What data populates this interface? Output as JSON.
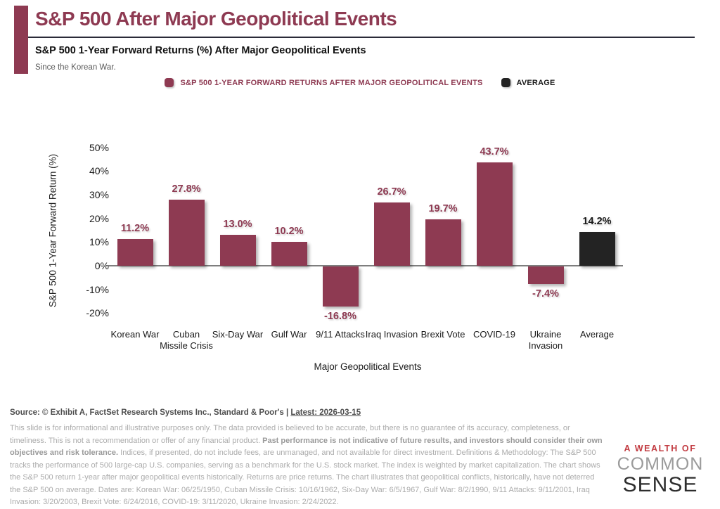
{
  "header": {
    "title": "S&P 500 After Major Geopolitical Events",
    "subtitle": "S&P 500 1-Year Forward Returns (%) After Major Geopolitical Events",
    "tagline": "Since the Korean War."
  },
  "legend": [
    {
      "label": "S&P 500 1-YEAR FORWARD RETURNS AFTER MAJOR GEOPOLITICAL EVENTS",
      "color": "#8E3A52",
      "text_color": "#8E3A52"
    },
    {
      "label": "AVERAGE",
      "color": "#232323",
      "text_color": "#1A1A1A"
    }
  ],
  "chart_data": {
    "type": "bar",
    "title": "S&P 500 1-Year Forward Returns (%) After Major Geopolitical Events",
    "categories": [
      "Korean War",
      "Cuban Missile Crisis",
      "Six-Day War",
      "Gulf War",
      "9/11 Attacks",
      "Iraq Invasion",
      "Brexit Vote",
      "COVID-19",
      "Ukraine Invasion",
      "Average"
    ],
    "values": [
      11.2,
      27.8,
      13.0,
      10.2,
      -16.8,
      26.7,
      19.7,
      43.7,
      -7.4,
      14.2
    ],
    "value_labels": [
      "11.2%",
      "27.8%",
      "13.0%",
      "10.2%",
      "-16.8%",
      "26.7%",
      "19.7%",
      "43.7%",
      "-7.4%",
      "14.2%"
    ],
    "bar_colors": [
      "#8E3A52",
      "#8E3A52",
      "#8E3A52",
      "#8E3A52",
      "#8E3A52",
      "#8E3A52",
      "#8E3A52",
      "#8E3A52",
      "#8E3A52",
      "#232323"
    ],
    "label_colors": [
      "#8E3A52",
      "#8E3A52",
      "#8E3A52",
      "#8E3A52",
      "#8E3A52",
      "#8E3A52",
      "#8E3A52",
      "#8E3A52",
      "#8E3A52",
      "#1A1A1A"
    ],
    "xlabel": "Major Geopolitical Events",
    "ylabel": "S&P 500 1-Year Forward Return (%)",
    "ylim": [
      -20,
      50
    ],
    "yticks": [
      "50%",
      "40%",
      "30%",
      "20%",
      "10%",
      "0%",
      "-10%",
      "-20%"
    ],
    "grid": false,
    "legend_position": "top"
  },
  "footer": {
    "source_prefix": "Source: © Exhibit A, FactSet Research Systems Inc., Standard & Poor's | ",
    "source_latest": "Latest: 2026-03-15",
    "disclaimer_part1": "This slide is for informational and illustrative purposes only. The data provided is believed to be accurate, but there is no guarantee of its accuracy, completeness, or timeliness. This is not a recommendation or offer of any financial product. ",
    "disclaimer_bold": "Past performance is not indicative of future results, and investors should consider their own objectives and risk tolerance.",
    "disclaimer_part2": " Indices, if presented, do not include fees, are unmanaged, and not available for direct investment. Definitions & Methodology: The S&P 500 tracks the performance of 500 large-cap U.S. companies, serving as a benchmark for the U.S. stock market. The index is weighted by market capitalization. The chart shows the S&P 500 return 1-year after major geopolitical events historically. Returns are price returns. The chart illustrates that geopolitical conflicts, historically, have not deterred the S&P 500 on average. Dates are: Korean War: 06/25/1950, Cuban Missile Crisis: 10/16/1962, Six-Day War: 6/5/1967, Gulf War: 8/2/1990, 9/11 Attacks: 9/11/2001, Iraq Invasion: 3/20/2003, Brexit Vote: 6/24/2016, COVID-19: 3/11/2020, Ukraine Invasion: 2/24/2022."
  },
  "logo": {
    "line1": "A WEALTH OF",
    "line2": "COMMON",
    "line3": "SENSE"
  }
}
